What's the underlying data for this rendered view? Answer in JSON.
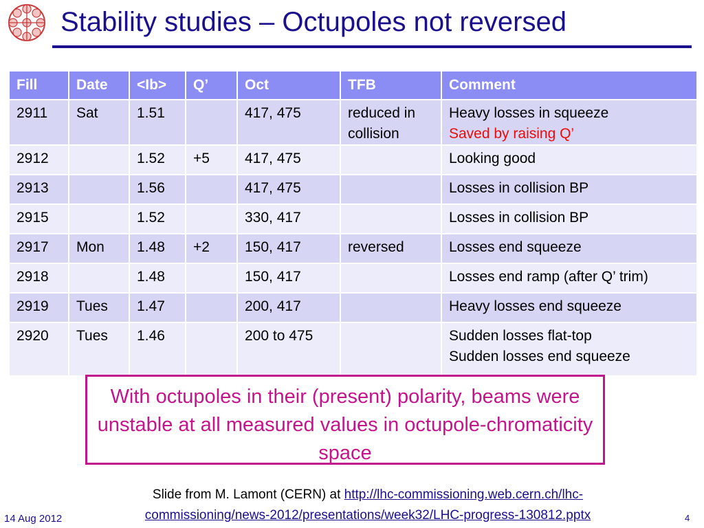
{
  "slide": {
    "title": "Stability studies – Octupoles not reversed",
    "logo_icon": "lhc-ring-logo-icon"
  },
  "table": {
    "headers": [
      "Fill",
      "Date",
      "<Ib>",
      "Q’",
      "Oct",
      "TFB",
      "Comment"
    ],
    "rows": [
      {
        "fill": "2911",
        "date": "Sat",
        "ib": "1.51",
        "q": "",
        "oct": "417, 475",
        "tfb": "reduced in collision",
        "comment": [
          "Heavy losses in squeeze",
          "Saved by raising Q’"
        ]
      },
      {
        "fill": "2912",
        "date": "",
        "ib": "1.52",
        "q": "+5",
        "oct": "417, 475",
        "tfb": "",
        "comment": [
          "Looking good"
        ]
      },
      {
        "fill": "2913",
        "date": "",
        "ib": "1.56",
        "q": "",
        "oct": "417, 475",
        "tfb": "",
        "comment": [
          "Losses in collision BP"
        ]
      },
      {
        "fill": "2915",
        "date": "",
        "ib": "1.52",
        "q": "",
        "oct": "330, 417",
        "tfb": "",
        "comment": [
          "Losses in collision BP"
        ]
      },
      {
        "fill": "2917",
        "date": "Mon",
        "ib": "1.48",
        "q": "+2",
        "oct": "150, 417",
        "tfb": "reversed",
        "comment": [
          "Losses end squeeze"
        ]
      },
      {
        "fill": "2918",
        "date": "",
        "ib": "1.48",
        "q": "",
        "oct": "150, 417",
        "tfb": "",
        "comment": [
          "Losses end ramp (after Q’ trim)"
        ]
      },
      {
        "fill": "2919",
        "date": "Tues",
        "ib": "1.47",
        "q": "",
        "oct": "200, 417",
        "tfb": "",
        "comment": [
          "Heavy losses end squeeze"
        ]
      },
      {
        "fill": "2920",
        "date": "Tues",
        "ib": "1.46",
        "q": "",
        "oct": "200 to 475",
        "tfb": "",
        "comment": [
          "Sudden losses flat-top",
          "Sudden losses end squeeze"
        ]
      }
    ]
  },
  "callout": {
    "text": "With octupoles in their (present) polarity, beams were unstable at all measured values in octupole-chromaticity space"
  },
  "source": {
    "prefix": "Slide from M. Lamont (CERN) at ",
    "link_line1": "http://lhc-commissioning.web.cern.ch/lhc-",
    "link_line2": "commissioning/news-2012/presentations/week32/LHC-progress-130812.pptx"
  },
  "footer": {
    "date": "14 Aug 2012",
    "page": "4"
  },
  "colors": {
    "title": "#1a0f8c",
    "header_bg": "#8c8cf5",
    "row_odd": "#d6d6f4",
    "row_even": "#ececfa",
    "callout": "#c4148c",
    "highlight_red": "#ea0c0c"
  }
}
